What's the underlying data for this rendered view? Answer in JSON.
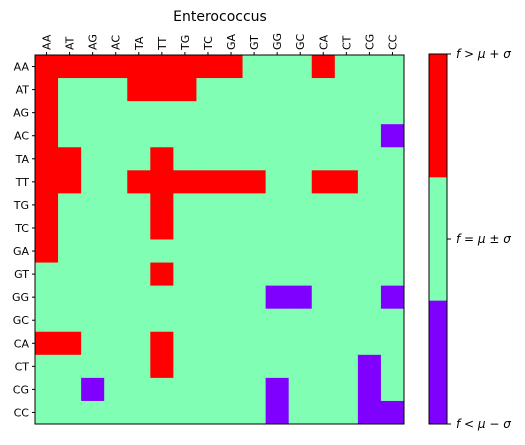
{
  "chart_data": {
    "type": "heatmap",
    "title": "Enterococcus",
    "xlabel": "",
    "ylabel": "",
    "x_categories": [
      "AA",
      "AT",
      "AG",
      "AC",
      "TA",
      "TT",
      "TG",
      "TC",
      "GA",
      "GT",
      "GG",
      "GC",
      "CA",
      "CT",
      "CG",
      "CC"
    ],
    "y_categories": [
      "AA",
      "AT",
      "AG",
      "AC",
      "TA",
      "TT",
      "TG",
      "TC",
      "GA",
      "GT",
      "GG",
      "GC",
      "CA",
      "CT",
      "CG",
      "CC"
    ],
    "levels": [
      {
        "value": -1,
        "label": "f < μ − σ",
        "color": "#8000ff"
      },
      {
        "value": 0,
        "label": "f = μ ± σ",
        "color": "#80ffb4"
      },
      {
        "value": 1,
        "label": "f > μ + σ",
        "color": "#ff0000"
      }
    ],
    "colorbar_labels": [
      "f > μ + σ",
      "f = μ ± σ",
      "f < μ − σ"
    ],
    "matrix": [
      [
        1,
        1,
        1,
        1,
        1,
        1,
        1,
        1,
        1,
        0,
        0,
        0,
        1,
        0,
        0,
        0
      ],
      [
        1,
        0,
        0,
        0,
        1,
        1,
        1,
        0,
        0,
        0,
        0,
        0,
        0,
        0,
        0,
        0
      ],
      [
        1,
        0,
        0,
        0,
        0,
        0,
        0,
        0,
        0,
        0,
        0,
        0,
        0,
        0,
        0,
        0
      ],
      [
        1,
        0,
        0,
        0,
        0,
        0,
        0,
        0,
        0,
        0,
        0,
        0,
        0,
        0,
        0,
        -1
      ],
      [
        1,
        1,
        0,
        0,
        0,
        1,
        0,
        0,
        0,
        0,
        0,
        0,
        0,
        0,
        0,
        0
      ],
      [
        1,
        1,
        0,
        0,
        1,
        1,
        1,
        1,
        1,
        1,
        0,
        0,
        1,
        1,
        0,
        0
      ],
      [
        1,
        0,
        0,
        0,
        0,
        1,
        0,
        0,
        0,
        0,
        0,
        0,
        0,
        0,
        0,
        0
      ],
      [
        1,
        0,
        0,
        0,
        0,
        1,
        0,
        0,
        0,
        0,
        0,
        0,
        0,
        0,
        0,
        0
      ],
      [
        1,
        0,
        0,
        0,
        0,
        0,
        0,
        0,
        0,
        0,
        0,
        0,
        0,
        0,
        0,
        0
      ],
      [
        0,
        0,
        0,
        0,
        0,
        1,
        0,
        0,
        0,
        0,
        0,
        0,
        0,
        0,
        0,
        0
      ],
      [
        0,
        0,
        0,
        0,
        0,
        0,
        0,
        0,
        0,
        0,
        -1,
        -1,
        0,
        0,
        0,
        -1
      ],
      [
        0,
        0,
        0,
        0,
        0,
        0,
        0,
        0,
        0,
        0,
        0,
        0,
        0,
        0,
        0,
        0
      ],
      [
        1,
        1,
        0,
        0,
        0,
        1,
        0,
        0,
        0,
        0,
        0,
        0,
        0,
        0,
        0,
        0
      ],
      [
        0,
        0,
        0,
        0,
        0,
        1,
        0,
        0,
        0,
        0,
        0,
        0,
        0,
        0,
        -1,
        0
      ],
      [
        0,
        0,
        -1,
        0,
        0,
        0,
        0,
        0,
        0,
        0,
        -1,
        0,
        0,
        0,
        -1,
        0
      ],
      [
        0,
        0,
        0,
        0,
        0,
        0,
        0,
        0,
        0,
        0,
        -1,
        0,
        0,
        0,
        -1,
        -1
      ]
    ]
  }
}
